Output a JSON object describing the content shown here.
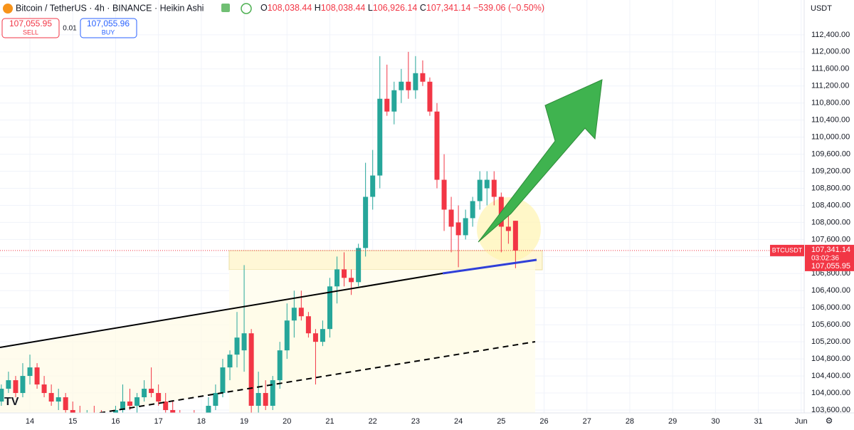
{
  "header": {
    "symbol": "Bitcoin / TetherUS · 4h · BINANCE · Heikin Ashi",
    "ohlc": [
      {
        "k": "O",
        "v": "108,038.44"
      },
      {
        "k": "H",
        "v": "108,038.44"
      },
      {
        "k": "L",
        "v": "106,926.14"
      },
      {
        "k": "C",
        "v": "107,341.14"
      }
    ],
    "change": "−539.06 (−0.50%)",
    "sell": {
      "price": "107,055.95",
      "label": "SELL"
    },
    "spread": "0.01",
    "buy": {
      "price": "107,055.96",
      "label": "BUY"
    },
    "currency": "USDT"
  },
  "price_tags": {
    "symbol": "BTCUSDT",
    "last": {
      "value": 107341.14,
      "label": "107,341.14"
    },
    "countdown": "03:02:36",
    "bid": {
      "value": 107055.95,
      "label": "107,055.95"
    }
  },
  "chart_data": {
    "type": "candlestick",
    "up_color": "#26a69a",
    "down_color": "#f23645",
    "grid": true,
    "xlim": [
      13.302,
      32.07
    ],
    "ylim": [
      103533,
      113216
    ],
    "xticks": [
      {
        "value": 14,
        "label": "14"
      },
      {
        "value": 15,
        "label": "15"
      },
      {
        "value": 16,
        "label": "16"
      },
      {
        "value": 17,
        "label": "17"
      },
      {
        "value": 18,
        "label": "18"
      },
      {
        "value": 19,
        "label": "19"
      },
      {
        "value": 20,
        "label": "20"
      },
      {
        "value": 21,
        "label": "21"
      },
      {
        "value": 22,
        "label": "22"
      },
      {
        "value": 23,
        "label": "23"
      },
      {
        "value": 24,
        "label": "24"
      },
      {
        "value": 25,
        "label": "25"
      },
      {
        "value": 26,
        "label": "26"
      },
      {
        "value": 27,
        "label": "27"
      },
      {
        "value": 28,
        "label": "28"
      },
      {
        "value": 29,
        "label": "29"
      },
      {
        "value": 30,
        "label": "30"
      },
      {
        "value": 31,
        "label": "31"
      },
      {
        "value": 32,
        "label": "Jun"
      }
    ],
    "yticks": [
      {
        "value": 103600,
        "label": "103,600.00"
      },
      {
        "value": 104000,
        "label": "104,000.00"
      },
      {
        "value": 104400,
        "label": "104,400.00"
      },
      {
        "value": 104800,
        "label": "104,800.00"
      },
      {
        "value": 105200,
        "label": "105,200.00"
      },
      {
        "value": 105600,
        "label": "105,600.00"
      },
      {
        "value": 106000,
        "label": "106,000.00"
      },
      {
        "value": 106400,
        "label": "106,400.00"
      },
      {
        "value": 106800,
        "label": "106,800.00"
      },
      {
        "value": 107200,
        "label": "107,200.00"
      },
      {
        "value": 107600,
        "label": "107,600.00"
      },
      {
        "value": 108000,
        "label": "108,000.00"
      },
      {
        "value": 108400,
        "label": "108,400.00"
      },
      {
        "value": 108800,
        "label": "108,800.00"
      },
      {
        "value": 109200,
        "label": "109,200.00"
      },
      {
        "value": 109600,
        "label": "109,600.00"
      },
      {
        "value": 110000,
        "label": "110,000.00"
      },
      {
        "value": 110400,
        "label": "110,400.00"
      },
      {
        "value": 110800,
        "label": "110,800.00"
      },
      {
        "value": 111200,
        "label": "111,200.00"
      },
      {
        "value": 111600,
        "label": "111,600.00"
      },
      {
        "value": 112000,
        "label": "112,000.00"
      },
      {
        "value": 112400,
        "label": "112,400.00"
      }
    ],
    "x": [
      13.333,
      13.5,
      13.667,
      13.833,
      14,
      14.167,
      14.333,
      14.5,
      14.667,
      14.833,
      15,
      15.167,
      15.333,
      15.5,
      15.667,
      15.833,
      16,
      16.167,
      16.333,
      16.5,
      16.667,
      16.833,
      17,
      17.167,
      17.333,
      17.5,
      17.667,
      17.833,
      18,
      18.167,
      18.333,
      18.5,
      18.667,
      18.833,
      19,
      19.167,
      19.333,
      19.5,
      19.667,
      19.833,
      20,
      20.167,
      20.333,
      20.5,
      20.667,
      20.833,
      21,
      21.167,
      21.333,
      21.5,
      21.667,
      21.833,
      22,
      22.167,
      22.333,
      22.5,
      22.667,
      22.833,
      23,
      23.167,
      23.333,
      23.5,
      23.667,
      23.833,
      24,
      24.167,
      24.333,
      24.5,
      24.667,
      24.833,
      25,
      25.167,
      25.333
    ],
    "open": [
      103800,
      104100,
      104300,
      104000,
      104400,
      104600,
      104200,
      104000,
      103800,
      103900,
      103600,
      103500,
      103400,
      103500,
      103400,
      103300,
      103400,
      103600,
      103800,
      103700,
      103900,
      104100,
      104000,
      103800,
      103600,
      103400,
      103300,
      103400,
      103300,
      103400,
      103700,
      104000,
      104600,
      104900,
      105000,
      105400,
      103700,
      104000,
      103700,
      104300,
      105000,
      105700,
      106000,
      105800,
      105400,
      105200,
      105500,
      106500,
      106900,
      106700,
      106600,
      107400,
      108600,
      109100,
      110900,
      110600,
      111100,
      111300,
      111100,
      111500,
      111300,
      110600,
      109000,
      108300,
      108000,
      107700,
      108100,
      108500,
      108800,
      109000,
      108600,
      107900,
      108038.44
    ],
    "high": [
      104200,
      104500,
      104400,
      104700,
      104900,
      104700,
      104400,
      104200,
      104100,
      104000,
      103800,
      103700,
      103600,
      103700,
      103600,
      103500,
      103700,
      104200,
      104100,
      104000,
      104300,
      104600,
      104200,
      104000,
      103800,
      103600,
      103500,
      103600,
      103500,
      103900,
      104200,
      104800,
      105000,
      105900,
      107000,
      105500,
      104500,
      104300,
      104400,
      105200,
      106100,
      106400,
      106400,
      105900,
      105500,
      105700,
      106700,
      107200,
      107300,
      106900,
      107500,
      109400,
      109700,
      111900,
      111700,
      111300,
      111600,
      112000,
      111900,
      111800,
      111400,
      110800,
      109600,
      108600,
      108400,
      108300,
      108600,
      109200,
      109200,
      109200,
      108700,
      108200,
      108038.44
    ],
    "low": [
      103700,
      104000,
      103900,
      103900,
      104200,
      104100,
      103900,
      103700,
      103600,
      103500,
      103400,
      103300,
      103200,
      103300,
      103100,
      103100,
      103300,
      103500,
      103600,
      103500,
      103800,
      103900,
      103700,
      103500,
      103300,
      103200,
      103100,
      103200,
      103100,
      103300,
      103600,
      103900,
      104300,
      104600,
      104500,
      103500,
      103500,
      103600,
      103600,
      104100,
      104800,
      105300,
      105700,
      105300,
      104200,
      105100,
      105300,
      106100,
      106500,
      106300,
      106500,
      107200,
      108300,
      108800,
      110500,
      110300,
      110800,
      110900,
      110900,
      111200,
      110500,
      108800,
      107800,
      107300,
      106950,
      107600,
      107900,
      108300,
      108400,
      108400,
      107300,
      107500,
      106926.14
    ],
    "close": [
      104100,
      104300,
      104000,
      104400,
      104600,
      104200,
      104000,
      103800,
      103900,
      103600,
      103500,
      103400,
      103500,
      103400,
      103300,
      103400,
      103600,
      103800,
      103700,
      103900,
      104100,
      104000,
      103800,
      103600,
      103400,
      103300,
      103400,
      103300,
      103400,
      103700,
      104000,
      104600,
      104900,
      105300,
      105400,
      103700,
      104000,
      103700,
      104300,
      105000,
      105700,
      106000,
      105800,
      105400,
      105200,
      105500,
      106500,
      106900,
      106700,
      106600,
      107400,
      108600,
      109100,
      110900,
      110600,
      111100,
      111300,
      111100,
      111500,
      111300,
      110600,
      109000,
      108300,
      107900,
      107700,
      108100,
      108500,
      109000,
      109000,
      108600,
      107900,
      107800,
      107341.14
    ]
  }
}
